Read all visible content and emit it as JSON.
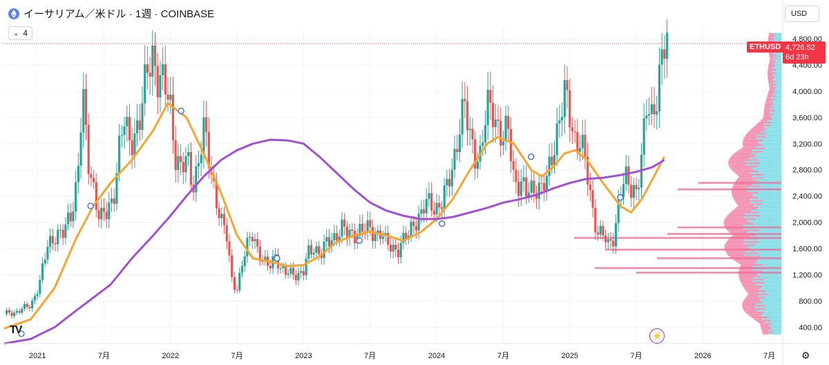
{
  "header": {
    "title": "イーサリアム／米ドル · 1週 · COINBASE",
    "indicator_count": "4",
    "currency": "USD"
  },
  "price_tag": {
    "symbol": "ETHUSD",
    "price": "4,726.52",
    "countdown": "6d 23h"
  },
  "icons": {
    "coin": "ethereum-icon",
    "logo": "tradingview-logo",
    "bolt": "lightning-icon",
    "settings": "gear-icon"
  },
  "colors": {
    "up": "#26a69a",
    "down": "#ef5350",
    "ma_short": "#f7a52f",
    "ma_long": "#a34fd1",
    "price_line": "#f23645",
    "vp_up": "#5ed3e0",
    "vp_down": "#f06a95"
  },
  "chart_data": {
    "type": "candlestick",
    "title": "イーサリアム／米ドル · 1週 · COINBASE",
    "x_ticks": [
      {
        "label": "2021",
        "x": 2021.0
      },
      {
        "label": "7月",
        "x": 2021.5
      },
      {
        "label": "2022",
        "x": 2022.0
      },
      {
        "label": "7月",
        "x": 2022.5
      },
      {
        "label": "2023",
        "x": 2023.0
      },
      {
        "label": "7月",
        "x": 2023.5
      },
      {
        "label": "2024",
        "x": 2024.0
      },
      {
        "label": "7月",
        "x": 2024.5
      },
      {
        "label": "2025",
        "x": 2025.0
      },
      {
        "label": "7月",
        "x": 2025.5
      },
      {
        "label": "2026",
        "x": 2026.0
      },
      {
        "label": "7月",
        "x": 2026.5
      }
    ],
    "y_ticks": [
      "400.00",
      "800.00",
      "1,200.00",
      "1,600.00",
      "2,000.00",
      "2,400.00",
      "2,800.00",
      "3,200.00",
      "3,600.00",
      "4,000.00",
      "4,400.00",
      "4,800.00"
    ],
    "xlim": [
      2020.74,
      2026.6
    ],
    "ylim": [
      150,
      4970
    ],
    "last_price": 4726.52,
    "price_path": [
      [
        2020.75,
        600
      ],
      [
        2020.85,
        640
      ],
      [
        2020.95,
        730
      ],
      [
        2021.02,
        1100
      ],
      [
        2021.08,
        1650
      ],
      [
        2021.14,
        1850
      ],
      [
        2021.2,
        1800
      ],
      [
        2021.26,
        2200
      ],
      [
        2021.3,
        2700
      ],
      [
        2021.34,
        3900
      ],
      [
        2021.38,
        2900
      ],
      [
        2021.42,
        2600
      ],
      [
        2021.47,
        2050
      ],
      [
        2021.52,
        2100
      ],
      [
        2021.57,
        2400
      ],
      [
        2021.61,
        3100
      ],
      [
        2021.65,
        3500
      ],
      [
        2021.69,
        3200
      ],
      [
        2021.73,
        3400
      ],
      [
        2021.78,
        3650
      ],
      [
        2021.83,
        4300
      ],
      [
        2021.87,
        4650
      ],
      [
        2021.91,
        4200
      ],
      [
        2021.95,
        4050
      ],
      [
        2022.0,
        3750
      ],
      [
        2022.04,
        3050
      ],
      [
        2022.08,
        2800
      ],
      [
        2022.13,
        2900
      ],
      [
        2022.17,
        2600
      ],
      [
        2022.21,
        2950
      ],
      [
        2022.25,
        3350
      ],
      [
        2022.3,
        2850
      ],
      [
        2022.34,
        2450
      ],
      [
        2022.38,
        2000
      ],
      [
        2022.42,
        1800
      ],
      [
        2022.46,
        1150
      ],
      [
        2022.5,
        1000
      ],
      [
        2022.54,
        1350
      ],
      [
        2022.58,
        1650
      ],
      [
        2022.62,
        1900
      ],
      [
        2022.66,
        1550
      ],
      [
        2022.7,
        1350
      ],
      [
        2022.74,
        1320
      ],
      [
        2022.79,
        1550
      ],
      [
        2022.83,
        1250
      ],
      [
        2022.87,
        1200
      ],
      [
        2022.92,
        1260
      ],
      [
        2022.96,
        1200
      ],
      [
        2023.0,
        1220
      ],
      [
        2023.04,
        1550
      ],
      [
        2023.08,
        1650
      ],
      [
        2023.13,
        1500
      ],
      [
        2023.17,
        1650
      ],
      [
        2023.21,
        1750
      ],
      [
        2023.25,
        1850
      ],
      [
        2023.29,
        1900
      ],
      [
        2023.33,
        1800
      ],
      [
        2023.38,
        1850
      ],
      [
        2023.42,
        1880
      ],
      [
        2023.46,
        1850
      ],
      [
        2023.5,
        1900
      ],
      [
        2023.54,
        1850
      ],
      [
        2023.58,
        1840
      ],
      [
        2023.62,
        1650
      ],
      [
        2023.67,
        1630
      ],
      [
        2023.71,
        1600
      ],
      [
        2023.75,
        1700
      ],
      [
        2023.79,
        1800
      ],
      [
        2023.83,
        2050
      ],
      [
        2023.88,
        2100
      ],
      [
        2023.92,
        2250
      ],
      [
        2023.96,
        2300
      ],
      [
        2024.0,
        2250
      ],
      [
        2024.04,
        2300
      ],
      [
        2024.08,
        2500
      ],
      [
        2024.13,
        3000
      ],
      [
        2024.17,
        3500
      ],
      [
        2024.21,
        3700
      ],
      [
        2024.25,
        3300
      ],
      [
        2024.29,
        3100
      ],
      [
        2024.33,
        3000
      ],
      [
        2024.38,
        3700
      ],
      [
        2024.42,
        3800
      ],
      [
        2024.46,
        3500
      ],
      [
        2024.5,
        3200
      ],
      [
        2024.54,
        3400
      ],
      [
        2024.58,
        2700
      ],
      [
        2024.63,
        2600
      ],
      [
        2024.67,
        2400
      ],
      [
        2024.71,
        2500
      ],
      [
        2024.75,
        2600
      ],
      [
        2024.79,
        2500
      ],
      [
        2024.83,
        2600
      ],
      [
        2024.88,
        3200
      ],
      [
        2024.92,
        3600
      ],
      [
        2024.96,
        3900
      ],
      [
        2025.0,
        3600
      ],
      [
        2025.04,
        3300
      ],
      [
        2025.08,
        3300
      ],
      [
        2025.13,
        2700
      ],
      [
        2025.17,
        2200
      ],
      [
        2025.21,
        1900
      ],
      [
        2025.25,
        1800
      ],
      [
        2025.29,
        1600
      ],
      [
        2025.33,
        1800
      ],
      [
        2025.38,
        2500
      ],
      [
        2025.42,
        2600
      ],
      [
        2025.46,
        2500
      ],
      [
        2025.5,
        2550
      ],
      [
        2025.54,
        3000
      ],
      [
        2025.58,
        3700
      ],
      [
        2025.62,
        3600
      ],
      [
        2025.67,
        4300
      ],
      [
        2025.71,
        4600
      ],
      [
        2025.74,
        4726.52
      ]
    ],
    "series": [
      {
        "values": [
          [
            2020.75,
            380
          ],
          [
            2020.95,
            520
          ],
          [
            2021.13,
            1000
          ],
          [
            2021.29,
            1750
          ],
          [
            2021.42,
            2250
          ],
          [
            2021.55,
            2600
          ],
          [
            2021.71,
            2950
          ],
          [
            2021.87,
            3400
          ],
          [
            2021.98,
            3820
          ],
          [
            2022.12,
            3600
          ],
          [
            2022.25,
            3050
          ],
          [
            2022.38,
            2450
          ],
          [
            2022.5,
            1800
          ],
          [
            2022.62,
            1450
          ],
          [
            2022.75,
            1400
          ],
          [
            2022.88,
            1330
          ],
          [
            2023.0,
            1350
          ],
          [
            2023.12,
            1480
          ],
          [
            2023.25,
            1700
          ],
          [
            2023.38,
            1800
          ],
          [
            2023.5,
            1860
          ],
          [
            2023.62,
            1800
          ],
          [
            2023.75,
            1720
          ],
          [
            2023.88,
            1850
          ],
          [
            2024.0,
            2050
          ],
          [
            2024.12,
            2350
          ],
          [
            2024.25,
            2800
          ],
          [
            2024.38,
            3200
          ],
          [
            2024.46,
            3300
          ],
          [
            2024.58,
            3200
          ],
          [
            2024.71,
            2800
          ],
          [
            2024.79,
            2700
          ],
          [
            2024.88,
            2850
          ],
          [
            2024.96,
            3050
          ],
          [
            2025.04,
            3100
          ],
          [
            2025.13,
            2950
          ],
          [
            2025.25,
            2600
          ],
          [
            2025.38,
            2250
          ],
          [
            2025.46,
            2150
          ],
          [
            2025.54,
            2350
          ],
          [
            2025.62,
            2650
          ],
          [
            2025.71,
            3000
          ]
        ]
      },
      {
        "values": [
          [
            2020.75,
            150
          ],
          [
            2020.95,
            220
          ],
          [
            2021.13,
            400
          ],
          [
            2021.29,
            650
          ],
          [
            2021.42,
            850
          ],
          [
            2021.55,
            1050
          ],
          [
            2021.71,
            1450
          ],
          [
            2021.87,
            1800
          ],
          [
            2022.0,
            2100
          ],
          [
            2022.12,
            2400
          ],
          [
            2022.25,
            2700
          ],
          [
            2022.38,
            2950
          ],
          [
            2022.5,
            3100
          ],
          [
            2022.62,
            3200
          ],
          [
            2022.75,
            3260
          ],
          [
            2022.88,
            3250
          ],
          [
            2023.0,
            3200
          ],
          [
            2023.12,
            3000
          ],
          [
            2023.25,
            2750
          ],
          [
            2023.38,
            2500
          ],
          [
            2023.5,
            2300
          ],
          [
            2023.62,
            2180
          ],
          [
            2023.75,
            2100
          ],
          [
            2023.88,
            2050
          ],
          [
            2024.0,
            2050
          ],
          [
            2024.12,
            2080
          ],
          [
            2024.25,
            2150
          ],
          [
            2024.38,
            2220
          ],
          [
            2024.5,
            2300
          ],
          [
            2024.62,
            2350
          ],
          [
            2024.75,
            2420
          ],
          [
            2024.88,
            2520
          ],
          [
            2025.0,
            2600
          ],
          [
            2025.12,
            2660
          ],
          [
            2025.25,
            2680
          ],
          [
            2025.38,
            2720
          ],
          [
            2025.5,
            2770
          ],
          [
            2025.62,
            2840
          ],
          [
            2025.71,
            2950
          ]
        ]
      }
    ],
    "markers": [
      {
        "x": 2020.88,
        "y": 300
      },
      {
        "x": 2021.4,
        "y": 2250
      },
      {
        "x": 2022.08,
        "y": 3700
      },
      {
        "x": 2022.8,
        "y": 1450
      },
      {
        "x": 2023.42,
        "y": 1720
      },
      {
        "x": 2024.04,
        "y": 1980
      },
      {
        "x": 2024.71,
        "y": 3000
      },
      {
        "x": 2025.38,
        "y": 2380
      }
    ]
  }
}
